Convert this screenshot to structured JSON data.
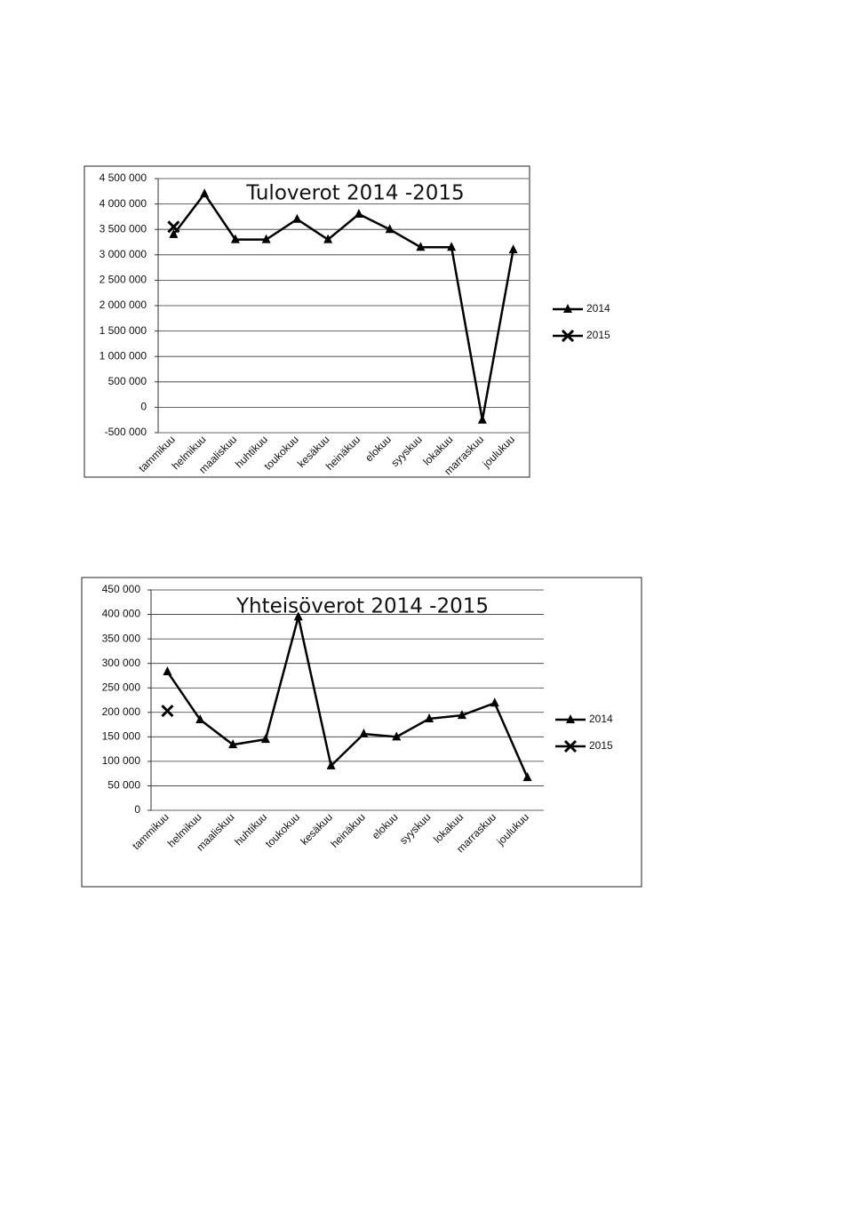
{
  "chart_data": [
    {
      "type": "line",
      "title": "Tuloverot 2014 -2015",
      "categories": [
        "tammikuu",
        "helmikuu",
        "maaliskuu",
        "huhtikuu",
        "toukokuu",
        "kesäkuu",
        "heinäkuu",
        "elokuu",
        "syyskuu",
        "lokakuu",
        "marraskuu",
        "joulukuu"
      ],
      "series": [
        {
          "name": "2014",
          "color": "#000000",
          "marker": "triangle",
          "values": [
            3400000,
            4200000,
            3300000,
            3300000,
            3700000,
            3300000,
            3800000,
            3500000,
            3150000,
            3150000,
            -250000,
            3100000
          ]
        },
        {
          "name": "2015",
          "color": "#000000",
          "marker": "x",
          "values": [
            3550000,
            null,
            null,
            null,
            null,
            null,
            null,
            null,
            null,
            null,
            null,
            null
          ]
        }
      ],
      "ylim": [
        -500000,
        4500000
      ],
      "yticks": [
        {
          "value": -500000,
          "label": "-500 000"
        },
        0,
        {
          "value": 500000,
          "label": "500 000"
        },
        {
          "value": 1000000,
          "label": "1 000 000"
        },
        {
          "value": 1500000,
          "label": "1 500 000"
        },
        {
          "value": 2000000,
          "label": "2 000 000"
        },
        {
          "value": 2500000,
          "label": "2 500 000"
        },
        {
          "value": 3000000,
          "label": "3 000 000"
        },
        {
          "value": 3500000,
          "label": "3 500 000"
        },
        {
          "value": 4000000,
          "label": "4 000 000"
        },
        {
          "value": 4500000,
          "label": "4 500 000"
        }
      ],
      "grid": true,
      "legend": "right"
    },
    {
      "type": "line",
      "title": "Yhteisöverot 2014 -2015",
      "categories": [
        "tammikuu",
        "helmikuu",
        "maaliskuu",
        "huhtikuu",
        "toukokuu",
        "kesäkuu",
        "heinäkuu",
        "elokuu",
        "syyskuu",
        "lokakuu",
        "marraskuu",
        "joulukuu"
      ],
      "series": [
        {
          "name": "2014",
          "color": "#000000",
          "marker": "triangle",
          "values": [
            283000,
            185000,
            134000,
            145000,
            395000,
            91000,
            156000,
            150000,
            187000,
            194000,
            219000,
            67000
          ]
        },
        {
          "name": "2015",
          "color": "#000000",
          "marker": "x",
          "values": [
            203000,
            null,
            null,
            null,
            null,
            null,
            null,
            null,
            null,
            null,
            null,
            null
          ]
        }
      ],
      "ylim": [
        0,
        450000
      ],
      "yticks": [
        0,
        {
          "value": 50000,
          "label": "50 000"
        },
        {
          "value": 100000,
          "label": "100 000"
        },
        {
          "value": 150000,
          "label": "150 000"
        },
        {
          "value": 200000,
          "label": "200 000"
        },
        {
          "value": 250000,
          "label": "250 000"
        },
        {
          "value": 300000,
          "label": "300 000"
        },
        {
          "value": 350000,
          "label": "350 000"
        },
        {
          "value": 400000,
          "label": "400 000"
        },
        {
          "value": 450000,
          "label": "450 000"
        }
      ],
      "grid": true,
      "legend": "right"
    }
  ]
}
